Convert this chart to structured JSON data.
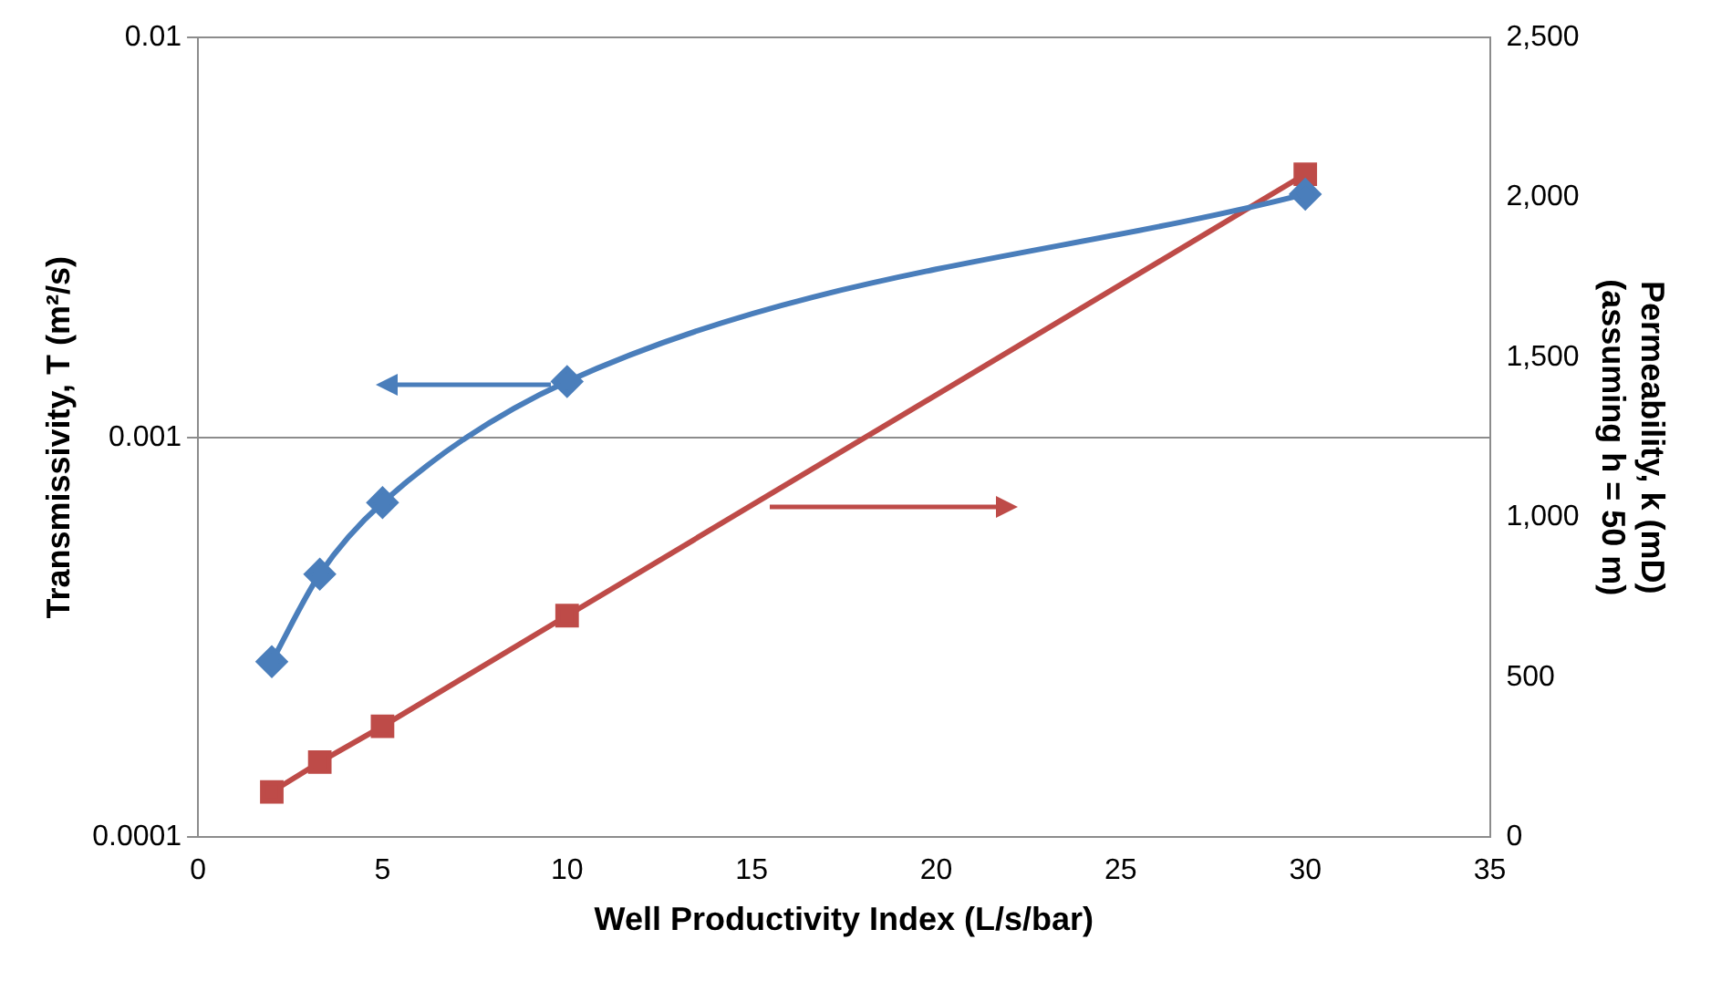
{
  "chart_data": {
    "type": "line",
    "xlabel": "Well Productivity Index (L/s/bar)",
    "ylabel": "Transmissivity, T (m²/s)",
    "y2label": "Permeability, k (mD)\n(assuming h = 50 m)",
    "log": "y",
    "grid": "y",
    "legend": false,
    "xlim": [
      0,
      35
    ],
    "xticks": [
      0,
      5,
      10,
      15,
      20,
      25,
      30,
      35
    ],
    "ylim": [
      0.0001,
      0.01
    ],
    "yticks": [
      0.0001,
      0.001,
      0.01
    ],
    "y2lim": [
      0,
      2500
    ],
    "y2ticks": [
      0,
      500,
      {
        "value": 1000,
        "label": "1,000"
      },
      {
        "value": 1500,
        "label": "1,500"
      },
      {
        "value": 2000,
        "label": "2,000"
      },
      {
        "value": 2500,
        "label": "2,500"
      }
    ],
    "series": [
      {
        "color": "#4a7ebb",
        "marker": "diamond",
        "x": [
          2,
          3.3,
          5,
          10,
          30
        ],
        "values": [
          0.000275,
          0.000455,
          0.000687,
          0.00138,
          0.00406
        ]
      },
      {
        "color": "#be4b48",
        "marker": "square",
        "axis": "y2",
        "x": [
          2,
          3.3,
          5,
          10,
          30
        ],
        "values": [
          142,
          235,
          347,
          693,
          2073
        ]
      }
    ]
  }
}
